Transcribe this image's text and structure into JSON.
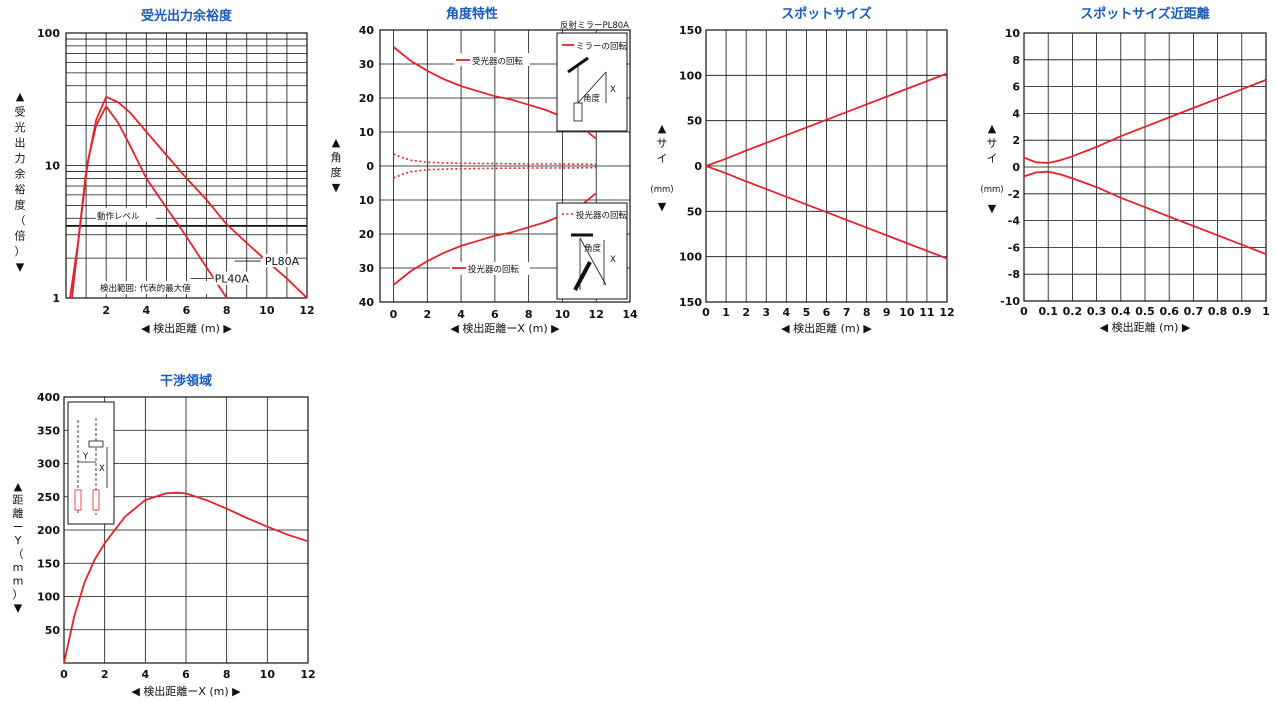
{
  "chart_data": [
    {
      "id": "c1",
      "type": "line",
      "title": "受光出力余裕度",
      "xlabel": "◀ 検出距離 (m) ▶",
      "ylabel": "▲受光出力余裕度（倍）▼",
      "xlim": [
        0,
        12
      ],
      "ylim": [
        1,
        100
      ],
      "ylog": true,
      "xticks": [
        2,
        4,
        6,
        8,
        10,
        12
      ],
      "yticks": [
        1,
        10,
        100
      ],
      "series": [
        {
          "name": "PL80A",
          "x": [
            0.2,
            0.6,
            1.0,
            1.5,
            2.0,
            2.6,
            3.2,
            4,
            5,
            6,
            7,
            8,
            9,
            10,
            11,
            12
          ],
          "y": [
            1.0,
            2.6,
            9,
            22,
            33,
            30,
            25,
            18,
            12,
            8,
            5.5,
            3.6,
            2.6,
            1.9,
            1.4,
            1.0
          ]
        },
        {
          "name": "PL40A",
          "x": [
            0.3,
            0.7,
            1.1,
            1.5,
            2.0,
            2.6,
            3.2,
            4,
            5,
            6,
            7,
            8
          ],
          "y": [
            1.0,
            3.5,
            11,
            20,
            28,
            21,
            14,
            8,
            4.8,
            2.9,
            1.7,
            1.0
          ]
        }
      ],
      "annotations": [
        "動作レベル",
        "検出範囲: 代表的最大値"
      ],
      "operating_level": 3.5
    },
    {
      "id": "c2",
      "type": "line",
      "title": "角度特性",
      "xlabel": "◀ 検出距離ーX (m) ▶",
      "ylabel": "▲角度▼",
      "xlim": [
        -0.8,
        14
      ],
      "ylim": [
        -40,
        40
      ],
      "xticks": [
        0,
        2,
        4,
        6,
        8,
        10,
        12,
        14
      ],
      "yticks": [
        40,
        30,
        20,
        10,
        0,
        10,
        20,
        30,
        40
      ],
      "series": [
        {
          "name": "受光器の回転",
          "x": [
            0,
            1,
            2,
            3,
            4,
            5,
            6,
            7,
            8,
            9,
            10,
            11,
            12
          ],
          "y": [
            35,
            31,
            28,
            25.5,
            23.5,
            22,
            20.5,
            19.5,
            18,
            16.5,
            14.5,
            12,
            8
          ]
        },
        {
          "name": "投光器の回転",
          "x": [
            0,
            1,
            2,
            3,
            4,
            5,
            6,
            7,
            8,
            9,
            10,
            11,
            12
          ],
          "y": [
            -35,
            -31,
            -28,
            -25.5,
            -23.5,
            -22,
            -20.5,
            -19.5,
            -18,
            -16.5,
            -14.5,
            -12,
            -8
          ]
        },
        {
          "name": "ミラーの回転",
          "x": [
            0,
            0.5,
            1,
            2,
            3,
            4,
            6,
            8,
            10,
            12
          ],
          "y": [
            3.5,
            2.5,
            1.7,
            1.1,
            0.9,
            0.8,
            0.7,
            0.6,
            0.6,
            0.5
          ]
        },
        {
          "name": "ミラーの回転 (−)",
          "x": [
            0,
            0.5,
            1,
            2,
            3,
            4,
            6,
            8,
            10,
            12
          ],
          "y": [
            -3.5,
            -2.5,
            -1.7,
            -1.1,
            -0.9,
            -0.8,
            -0.7,
            -0.6,
            -0.6,
            -0.5
          ]
        }
      ],
      "legend_box_title": "反射ミラーPL80A",
      "inset_labels": [
        "角度",
        "X",
        "角度",
        "X"
      ]
    },
    {
      "id": "c3",
      "type": "line",
      "title": "スポットサイズ",
      "xlabel": "◀ 検出距離 (m) ▶",
      "ylabel": "▲サイズ▼",
      "yunit": "(mm)",
      "xlim": [
        0,
        12
      ],
      "ylim": [
        -150,
        150
      ],
      "xticks": [
        0,
        1,
        2,
        3,
        4,
        5,
        6,
        7,
        8,
        9,
        10,
        11,
        12
      ],
      "yticks": [
        150,
        100,
        50,
        0,
        50,
        100,
        150
      ],
      "series": [
        {
          "name": "upper",
          "x": [
            0,
            1,
            2,
            4,
            6,
            8,
            10,
            12
          ],
          "y": [
            0,
            8,
            17,
            34,
            51,
            68,
            85,
            102
          ]
        },
        {
          "name": "lower",
          "x": [
            0,
            1,
            2,
            4,
            6,
            8,
            10,
            12
          ],
          "y": [
            0,
            -8,
            -17,
            -34,
            -51,
            -68,
            -85,
            -102
          ]
        }
      ]
    },
    {
      "id": "c4",
      "type": "line",
      "title": "スポットサイズ近距離",
      "xlabel": "◀ 検出距離 (m) ▶",
      "ylabel": "▲サイズ▼",
      "yunit": "(mm)",
      "xlim": [
        0,
        1
      ],
      "ylim": [
        -10,
        10
      ],
      "xticks": [
        "0",
        "0.1",
        "0.2",
        "0.3",
        "0.4",
        "0.5",
        "0.6",
        "0.7",
        "0.8",
        "0.9",
        "1"
      ],
      "yticks": [
        10,
        8,
        6,
        4,
        2,
        0,
        -2,
        -4,
        -6,
        -8,
        -10
      ],
      "series": [
        {
          "name": "upper",
          "x": [
            0,
            0.05,
            0.1,
            0.15,
            0.2,
            0.3,
            0.4,
            0.5,
            0.6,
            0.7,
            0.8,
            0.9,
            1.0
          ],
          "y": [
            0.7,
            0.35,
            0.3,
            0.5,
            0.8,
            1.5,
            2.3,
            3.0,
            3.7,
            4.4,
            5.1,
            5.8,
            6.5
          ]
        },
        {
          "name": "lower",
          "x": [
            0,
            0.05,
            0.1,
            0.15,
            0.2,
            0.3,
            0.4,
            0.5,
            0.6,
            0.7,
            0.8,
            0.9,
            1.0
          ],
          "y": [
            -0.7,
            -0.4,
            -0.35,
            -0.55,
            -0.85,
            -1.5,
            -2.3,
            -3.0,
            -3.7,
            -4.4,
            -5.1,
            -5.8,
            -6.5
          ]
        }
      ]
    },
    {
      "id": "c5",
      "type": "line",
      "title": "干渉領域",
      "xlabel": "◀ 検出距離ーX (m) ▶",
      "ylabel": "▲距離ーY（mm）▼",
      "xlim": [
        0,
        12
      ],
      "ylim": [
        0,
        400
      ],
      "xticks": [
        0,
        2,
        4,
        6,
        8,
        10,
        12
      ],
      "yticks": [
        50,
        100,
        150,
        200,
        250,
        300,
        350,
        400
      ],
      "series": [
        {
          "name": "interference",
          "x": [
            0,
            0.5,
            1,
            1.5,
            2,
            3,
            4,
            5,
            5.5,
            6,
            7,
            8,
            9,
            10,
            11,
            12
          ],
          "y": [
            0,
            70,
            120,
            155,
            180,
            220,
            245,
            255,
            256,
            255,
            245,
            232,
            218,
            205,
            193,
            183
          ]
        }
      ],
      "inset_labels": [
        "Y",
        "X"
      ]
    }
  ]
}
